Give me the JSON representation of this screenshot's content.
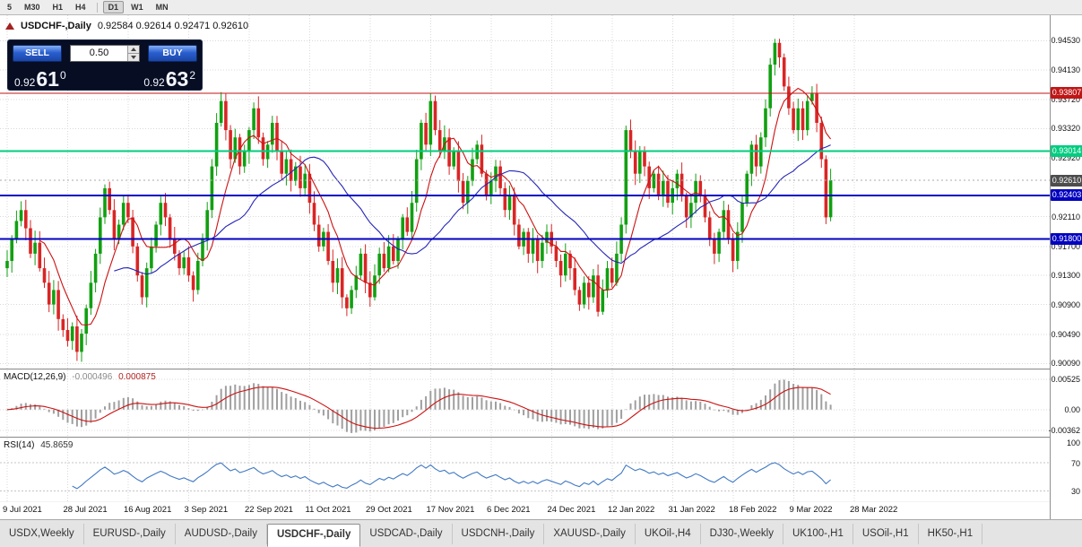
{
  "colors": {
    "up": "#11a011",
    "down": "#d92525",
    "ma_fast": "#cc1111",
    "ma_slow": "#2424b8",
    "grid": "#d9d9d9",
    "hline": {
      "red": "#c01616",
      "green": "#00cd80",
      "blue": "#0202c0"
    },
    "current_badge": "#4d4d4d",
    "bid_line": "#aaaaaa",
    "macd_hist": "#9f9f9f",
    "macd_signal": "#cc1111",
    "rsi_line": "#4079c4"
  },
  "toolbar": {
    "timeframes": [
      "5",
      "M30",
      "H1",
      "H4",
      "D1",
      "W1",
      "MN"
    ],
    "active": "D1"
  },
  "chart": {
    "symbol_title": "USDCHF-,Daily",
    "ohlc_text": "0.92584 0.92614 0.92471 0.92610"
  },
  "trade_panel": {
    "sell_label": "SELL",
    "buy_label": "BUY",
    "volume": "0.50",
    "sell_price_prefix": "0.92",
    "sell_price_big": "61",
    "sell_price_sup": "0",
    "buy_price_prefix": "0.92",
    "buy_price_big": "63",
    "buy_price_sup": "2"
  },
  "tabbar": {
    "tabs": [
      "USDX,Weekly",
      "EURUSD-,Daily",
      "AUDUSD-,Daily",
      "USDCHF-,Daily",
      "USDCAD-,Daily",
      "USDCNH-,Daily",
      "XAUUSD-,Daily",
      "UKOil-,H4",
      "DJ30-,Weekly",
      "UK100-,H1",
      "USOil-,H1",
      "HK50-,H1"
    ],
    "active": "USDCHF-,Daily"
  },
  "chart_data": {
    "type": "candlestick",
    "symbol": "USDCHF-",
    "timeframe": "Daily",
    "current": {
      "open": 0.92584,
      "high": 0.92614,
      "low": 0.92471,
      "close": 0.9261
    },
    "current_price": 0.9261,
    "ylim": [
      0.9002,
      0.9488
    ],
    "y_ticks": [
      0.9453,
      0.9413,
      0.9372,
      0.9332,
      0.9292,
      0.9211,
      0.917,
      0.913,
      0.909,
      0.9049,
      0.9009
    ],
    "x_labels": [
      "9 Jul 2021",
      "28 Jul 2021",
      "16 Aug 2021",
      "3 Sep 2021",
      "22 Sep 2021",
      "11 Oct 2021",
      "29 Oct 2021",
      "17 Nov 2021",
      "6 Dec 2021",
      "24 Dec 2021",
      "12 Jan 2022",
      "31 Jan 2022",
      "18 Feb 2022",
      "9 Mar 2022",
      "28 Mar 2022"
    ],
    "hlines": [
      {
        "value": 0.93807,
        "color": "red"
      },
      {
        "value": 0.93014,
        "color": "green"
      },
      {
        "value": 0.92403,
        "color": "blue"
      },
      {
        "value": 0.918,
        "color": "blue"
      }
    ],
    "moving_averages": [
      {
        "period": 8,
        "color_key": "ma_fast"
      },
      {
        "period": 24,
        "color_key": "ma_slow"
      }
    ],
    "closes": [
      0.915,
      0.918,
      0.9205,
      0.922,
      0.9195,
      0.916,
      0.9175,
      0.914,
      0.912,
      0.909,
      0.911,
      0.907,
      0.9055,
      0.904,
      0.906,
      0.9025,
      0.905,
      0.9085,
      0.912,
      0.916,
      0.921,
      0.925,
      0.922,
      0.918,
      0.92,
      0.923,
      0.921,
      0.917,
      0.913,
      0.91,
      0.914,
      0.917,
      0.92,
      0.923,
      0.921,
      0.918,
      0.916,
      0.914,
      0.9155,
      0.913,
      0.911,
      0.915,
      0.918,
      0.922,
      0.928,
      0.934,
      0.937,
      0.933,
      0.929,
      0.932,
      0.928,
      0.93,
      0.933,
      0.936,
      0.932,
      0.929,
      0.931,
      0.934,
      0.93,
      0.927,
      0.929,
      0.926,
      0.928,
      0.925,
      0.927,
      0.923,
      0.92,
      0.917,
      0.919,
      0.915,
      0.912,
      0.914,
      0.91,
      0.9085,
      0.911,
      0.913,
      0.916,
      0.912,
      0.91,
      0.913,
      0.916,
      0.914,
      0.917,
      0.915,
      0.918,
      0.921,
      0.919,
      0.923,
      0.929,
      0.934,
      0.931,
      0.937,
      0.933,
      0.93,
      0.932,
      0.928,
      0.93,
      0.926,
      0.923,
      0.926,
      0.929,
      0.931,
      0.927,
      0.924,
      0.926,
      0.928,
      0.925,
      0.922,
      0.924,
      0.92,
      0.917,
      0.919,
      0.916,
      0.918,
      0.915,
      0.9175,
      0.919,
      0.917,
      0.915,
      0.913,
      0.916,
      0.914,
      0.911,
      0.909,
      0.912,
      0.91,
      0.913,
      0.908,
      0.911,
      0.914,
      0.912,
      0.916,
      0.92,
      0.933,
      0.93,
      0.927,
      0.93,
      0.928,
      0.925,
      0.927,
      0.924,
      0.926,
      0.923,
      0.925,
      0.927,
      0.924,
      0.921,
      0.923,
      0.926,
      0.924,
      0.921,
      0.918,
      0.916,
      0.919,
      0.922,
      0.918,
      0.915,
      0.919,
      0.923,
      0.927,
      0.931,
      0.928,
      0.932,
      0.936,
      0.942,
      0.945,
      0.943,
      0.939,
      0.936,
      0.933,
      0.936,
      0.933,
      0.937,
      0.938,
      0.934,
      0.929,
      0.921,
      0.9261
    ],
    "indicators": [
      {
        "type": "MACD",
        "label": "MACD(12,26,9)",
        "main_value": "-0.000496",
        "signal_value": "0.000875",
        "params": [
          12,
          26,
          9
        ],
        "y_ticks": [
          "0.00525",
          "0.00",
          "-0.00362"
        ],
        "ylim": [
          -0.0047,
          0.0068
        ]
      },
      {
        "type": "RSI",
        "label": "RSI(14)",
        "value": "45.8659",
        "period": 14,
        "y_ticks": [
          "100",
          "70",
          "30"
        ],
        "levels": [
          70,
          30
        ],
        "ylim": [
          15,
          105
        ]
      }
    ]
  }
}
